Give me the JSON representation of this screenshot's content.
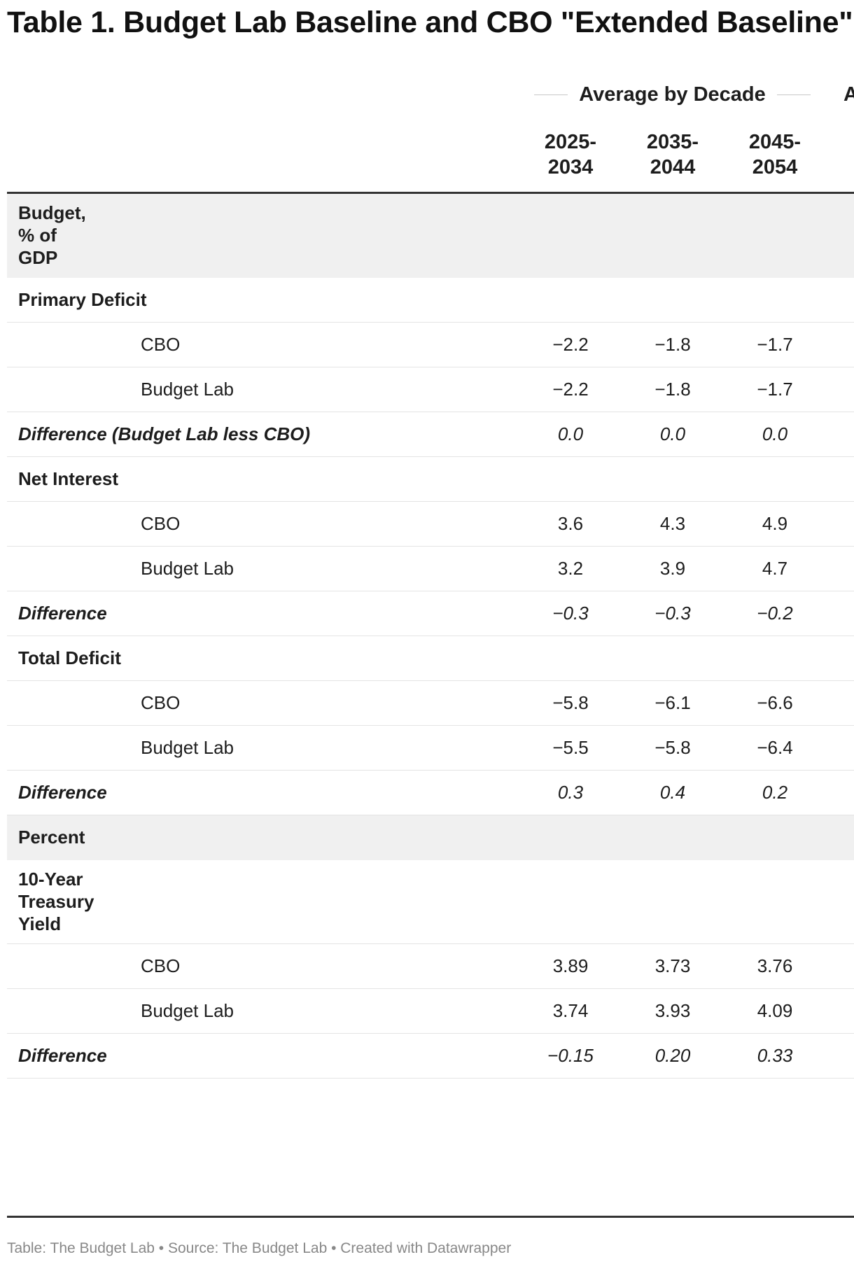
{
  "title": "Table 1. Budget Lab Baseline and CBO \"Extended Baseline\"",
  "column_group": {
    "label": "Average by Decade",
    "next_group_partial": "A"
  },
  "columns": [
    {
      "line1": "2025-",
      "line2": "2034"
    },
    {
      "line1": "2035-",
      "line2": "2044"
    },
    {
      "line1": "2045-",
      "line2": "2054"
    }
  ],
  "rows": [
    {
      "kind": "section",
      "label": "Budget,\n% of\nGDP",
      "values": []
    },
    {
      "kind": "category",
      "label": "Primary Deficit",
      "values": []
    },
    {
      "kind": "sub",
      "label": "CBO",
      "values": [
        "−2.2",
        "−1.8",
        "−1.7"
      ]
    },
    {
      "kind": "sub",
      "label": "Budget Lab",
      "values": [
        "−2.2",
        "−1.8",
        "−1.7"
      ]
    },
    {
      "kind": "diff",
      "label": "Difference (Budget Lab less CBO)",
      "values": [
        "0.0",
        "0.0",
        "0.0"
      ]
    },
    {
      "kind": "category",
      "label": "Net Interest",
      "values": []
    },
    {
      "kind": "sub",
      "label": "CBO",
      "values": [
        "3.6",
        "4.3",
        "4.9"
      ]
    },
    {
      "kind": "sub",
      "label": "Budget Lab",
      "values": [
        "3.2",
        "3.9",
        "4.7"
      ]
    },
    {
      "kind": "diff",
      "label": "Difference",
      "values": [
        "−0.3",
        "−0.3",
        "−0.2"
      ]
    },
    {
      "kind": "category",
      "label": "Total Deficit",
      "values": []
    },
    {
      "kind": "sub",
      "label": "CBO",
      "values": [
        "−5.8",
        "−6.1",
        "−6.6"
      ]
    },
    {
      "kind": "sub",
      "label": "Budget Lab",
      "values": [
        "−5.5",
        "−5.8",
        "−6.4"
      ]
    },
    {
      "kind": "diff",
      "label": "Difference",
      "values": [
        "0.3",
        "0.4",
        "0.2"
      ]
    },
    {
      "kind": "section",
      "label": "Percent",
      "values": []
    },
    {
      "kind": "category",
      "label": "10-Year\nTreasury\nYield",
      "values": []
    },
    {
      "kind": "sub",
      "label": "CBO",
      "values": [
        "3.89",
        "3.73",
        "3.76"
      ]
    },
    {
      "kind": "sub",
      "label": "Budget Lab",
      "values": [
        "3.74",
        "3.93",
        "4.09"
      ]
    },
    {
      "kind": "diff",
      "label": "Difference",
      "values": [
        "−0.15",
        "0.20",
        "0.33"
      ]
    }
  ],
  "footer": "Table: The Budget Lab • Source: The Budget Lab • Created with Datawrapper"
}
